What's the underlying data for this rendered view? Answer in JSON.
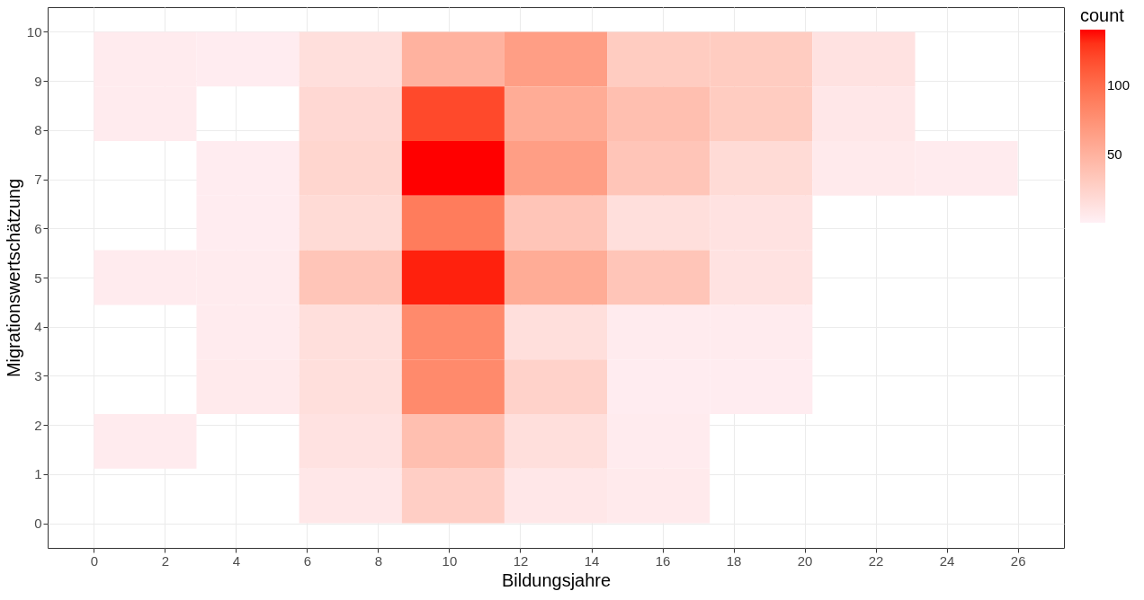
{
  "chart_data": {
    "type": "heatmap",
    "xlabel": "Bildungsjahre",
    "ylabel": "Migrationswertschätzung",
    "legend_title": "count",
    "x": [
      1.444,
      4.333,
      7.222,
      10.111,
      13,
      15.889,
      18.778,
      21.667,
      24.556
    ],
    "y": [
      9.444,
      8.333,
      7.222,
      6.111,
      5,
      3.889,
      2.778,
      1.667,
      0.556
    ],
    "cells": [
      [
        5,
        4,
        15,
        50,
        65,
        30,
        30,
        12,
        null
      ],
      [
        5,
        null,
        20,
        120,
        55,
        40,
        30,
        8,
        null
      ],
      [
        null,
        4,
        22,
        140,
        65,
        35,
        18,
        6,
        5
      ],
      [
        null,
        4,
        18,
        90,
        35,
        15,
        12,
        null,
        null
      ],
      [
        5,
        5,
        35,
        135,
        55,
        35,
        12,
        null,
        null
      ],
      [
        null,
        5,
        15,
        80,
        15,
        5,
        5,
        null,
        null
      ],
      [
        null,
        6,
        15,
        80,
        25,
        4,
        4,
        null,
        null
      ],
      [
        5,
        null,
        12,
        40,
        15,
        5,
        null,
        null,
        null
      ],
      [
        null,
        null,
        8,
        28,
        8,
        6,
        null,
        null,
        null
      ]
    ],
    "colors": [
      "#fff0f5",
      "#ff0000"
    ],
    "clim": [
      1,
      140
    ],
    "cticks": [
      50,
      100
    ],
    "xlim": [
      -1.3,
      27.3
    ],
    "xticks": [
      0,
      2,
      4,
      6,
      8,
      10,
      12,
      14,
      16,
      18,
      20,
      22,
      24,
      26
    ],
    "ylim": [
      -0.5,
      10.5
    ],
    "yticks": [
      0,
      1,
      2,
      3,
      4,
      5,
      6,
      7,
      8,
      9,
      10
    ],
    "grid": true
  }
}
